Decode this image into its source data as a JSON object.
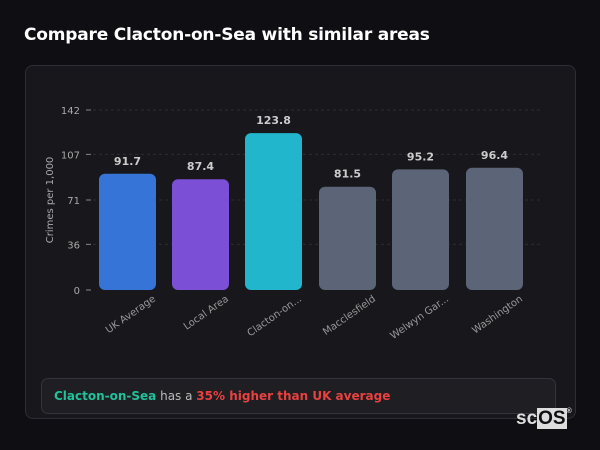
{
  "title": "Compare Clacton-on-Sea with similar areas",
  "summary": {
    "area": "Clacton-on-Sea",
    "middle": " has a ",
    "highlight": "35% higher than UK average"
  },
  "logo": {
    "text_a": "sc",
    "text_b": "OS",
    "mark": "®"
  },
  "chart_data": {
    "type": "bar",
    "title": "",
    "xlabel": "",
    "ylabel": "Crimes per 1,000",
    "ylim": [
      0,
      142
    ],
    "yticks": [
      0,
      36,
      71,
      107,
      142
    ],
    "grid": true,
    "categories": [
      "UK Average",
      "Local Area",
      "Clacton-on...",
      "Macclesfield",
      "Welwyn Gar...",
      "Washington"
    ],
    "values": [
      91.7,
      87.4,
      123.8,
      81.5,
      95.2,
      96.4
    ],
    "colors": [
      "#3674d8",
      "#7b4fd6",
      "#22b6cd",
      "#5b6577",
      "#5b6577",
      "#5b6577"
    ]
  }
}
